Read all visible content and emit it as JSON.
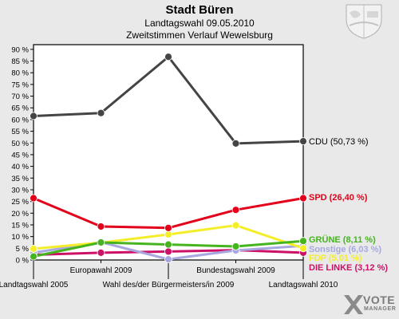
{
  "header": {
    "title": "Stadt Büren",
    "subtitle": "Landtagswahl 09.05.2010",
    "subtitle2": "Zweitstimmen Verlauf Wewelsburg"
  },
  "logo": {
    "line1": "VOTE",
    "line2": "MANAGER"
  },
  "chart_data": {
    "type": "line",
    "title": "Stadt Büren",
    "subtitle": "Landtagswahl 09.05.2010 / Zweitstimmen Verlauf Wewelsburg",
    "categories": [
      "Landtagswahl 2005",
      "Europawahl 2009",
      "Wahl des/der Bürgermeisters/in 2009",
      "Bundestagswahl 2009",
      "Landtagswahl 2010"
    ],
    "y_ticks": [
      "0 %",
      "5 %",
      "10 %",
      "15 %",
      "20 %",
      "25 %",
      "30 %",
      "35 %",
      "40 %",
      "45 %",
      "50 %",
      "55 %",
      "60 %",
      "65 %",
      "70 %",
      "75 %",
      "80 %",
      "85 %",
      "90 %"
    ],
    "ylim": [
      0,
      92
    ],
    "grid": false,
    "series": [
      {
        "name": "CDU",
        "end_label": "CDU (50,73 %)",
        "color": "#444444",
        "values": [
          61.5,
          62.8,
          86.8,
          49.8,
          50.73
        ]
      },
      {
        "name": "SPD",
        "end_label": "SPD (26,40 %)",
        "color": "#e2001a",
        "values": [
          26.4,
          14.3,
          13.7,
          21.4,
          26.4
        ]
      },
      {
        "name": "GRÜNE",
        "end_label": "GRÜNE (8,11 %)",
        "color": "#46b41e",
        "values": [
          1.5,
          7.5,
          6.6,
          5.8,
          8.11
        ]
      },
      {
        "name": "FDP",
        "end_label": "FDP (5,01 %)",
        "color": "#f4ee2a",
        "values": [
          4.8,
          7.4,
          10.9,
          14.8,
          5.01
        ]
      },
      {
        "name": "Sonstige",
        "end_label": "Sonstige (6,03 %)",
        "color": "#a8a8e0",
        "values": [
          3.1,
          7.6,
          0.3,
          4.1,
          6.03
        ]
      },
      {
        "name": "DIE LINKE",
        "end_label": "DIE LINKE (3,12 %)",
        "color": "#cc1166",
        "values": [
          2.2,
          3.1,
          3.6,
          4.2,
          3.12
        ]
      }
    ]
  }
}
